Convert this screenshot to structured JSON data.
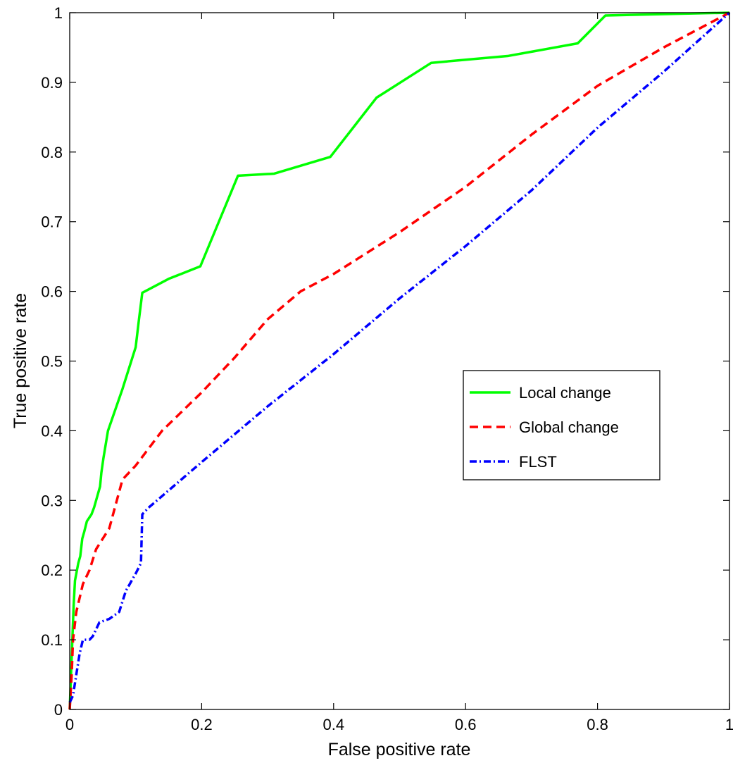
{
  "chart_data": {
    "type": "line",
    "title": "",
    "xlabel": "False positive rate",
    "ylabel": "True positive rate",
    "xlim": [
      0,
      1
    ],
    "ylim": [
      0,
      1
    ],
    "xticks": [
      0,
      0.2,
      0.4,
      0.6,
      0.8,
      1
    ],
    "xtick_labels": [
      "0",
      "0.2",
      "0.4",
      "0.6",
      "0.8",
      "1"
    ],
    "yticks": [
      0,
      0.1,
      0.2,
      0.3,
      0.4,
      0.5,
      0.6,
      0.7,
      0.8,
      0.9,
      1
    ],
    "ytick_labels": [
      "0",
      "0.1",
      "0.2",
      "0.3",
      "0.4",
      "0.5",
      "0.6",
      "0.7",
      "0.8",
      "0.9",
      "1"
    ],
    "grid": false,
    "legend_position": "right",
    "series": [
      {
        "name": "Local change",
        "color": "#00ff00",
        "style": "solid",
        "points": [
          [
            0,
            0
          ],
          [
            0.002,
            0.05
          ],
          [
            0.004,
            0.1
          ],
          [
            0.006,
            0.15
          ],
          [
            0.008,
            0.185
          ],
          [
            0.011,
            0.2
          ],
          [
            0.013,
            0.21
          ],
          [
            0.016,
            0.22
          ],
          [
            0.019,
            0.245
          ],
          [
            0.022,
            0.255
          ],
          [
            0.026,
            0.27
          ],
          [
            0.033,
            0.28
          ],
          [
            0.037,
            0.29
          ],
          [
            0.046,
            0.32
          ],
          [
            0.048,
            0.34
          ],
          [
            0.051,
            0.36
          ],
          [
            0.058,
            0.4
          ],
          [
            0.08,
            0.46
          ],
          [
            0.1,
            0.52
          ],
          [
            0.105,
            0.56
          ],
          [
            0.11,
            0.598
          ],
          [
            0.15,
            0.618
          ],
          [
            0.198,
            0.636
          ],
          [
            0.255,
            0.766
          ],
          [
            0.31,
            0.769
          ],
          [
            0.395,
            0.793
          ],
          [
            0.465,
            0.878
          ],
          [
            0.548,
            0.928
          ],
          [
            0.665,
            0.938
          ],
          [
            0.77,
            0.956
          ],
          [
            0.812,
            0.996
          ],
          [
            1.0,
            1.0
          ]
        ]
      },
      {
        "name": "Global change",
        "color": "#ff0000",
        "style": "dashed",
        "points": [
          [
            0,
            0
          ],
          [
            0.003,
            0.05
          ],
          [
            0.005,
            0.1
          ],
          [
            0.01,
            0.14
          ],
          [
            0.02,
            0.18
          ],
          [
            0.03,
            0.2
          ],
          [
            0.04,
            0.23
          ],
          [
            0.05,
            0.245
          ],
          [
            0.06,
            0.26
          ],
          [
            0.08,
            0.33
          ],
          [
            0.1,
            0.35
          ],
          [
            0.14,
            0.4
          ],
          [
            0.2,
            0.455
          ],
          [
            0.25,
            0.505
          ],
          [
            0.3,
            0.56
          ],
          [
            0.35,
            0.6
          ],
          [
            0.4,
            0.625
          ],
          [
            0.5,
            0.685
          ],
          [
            0.6,
            0.75
          ],
          [
            0.7,
            0.825
          ],
          [
            0.8,
            0.895
          ],
          [
            0.9,
            0.95
          ],
          [
            1.0,
            1.0
          ]
        ]
      },
      {
        "name": "FLST",
        "color": "#0000ff",
        "style": "dashdot",
        "points": [
          [
            0,
            0.01
          ],
          [
            0.005,
            0.02
          ],
          [
            0.01,
            0.05
          ],
          [
            0.015,
            0.08
          ],
          [
            0.02,
            0.1
          ],
          [
            0.03,
            0.1
          ],
          [
            0.035,
            0.105
          ],
          [
            0.045,
            0.125
          ],
          [
            0.06,
            0.13
          ],
          [
            0.075,
            0.14
          ],
          [
            0.085,
            0.17
          ],
          [
            0.1,
            0.195
          ],
          [
            0.108,
            0.21
          ],
          [
            0.11,
            0.28
          ],
          [
            0.12,
            0.29
          ],
          [
            0.2,
            0.355
          ],
          [
            0.3,
            0.435
          ],
          [
            0.4,
            0.51
          ],
          [
            0.5,
            0.59
          ],
          [
            0.6,
            0.665
          ],
          [
            0.7,
            0.745
          ],
          [
            0.8,
            0.835
          ],
          [
            0.9,
            0.915
          ],
          [
            1.0,
            1.0
          ]
        ]
      }
    ]
  }
}
